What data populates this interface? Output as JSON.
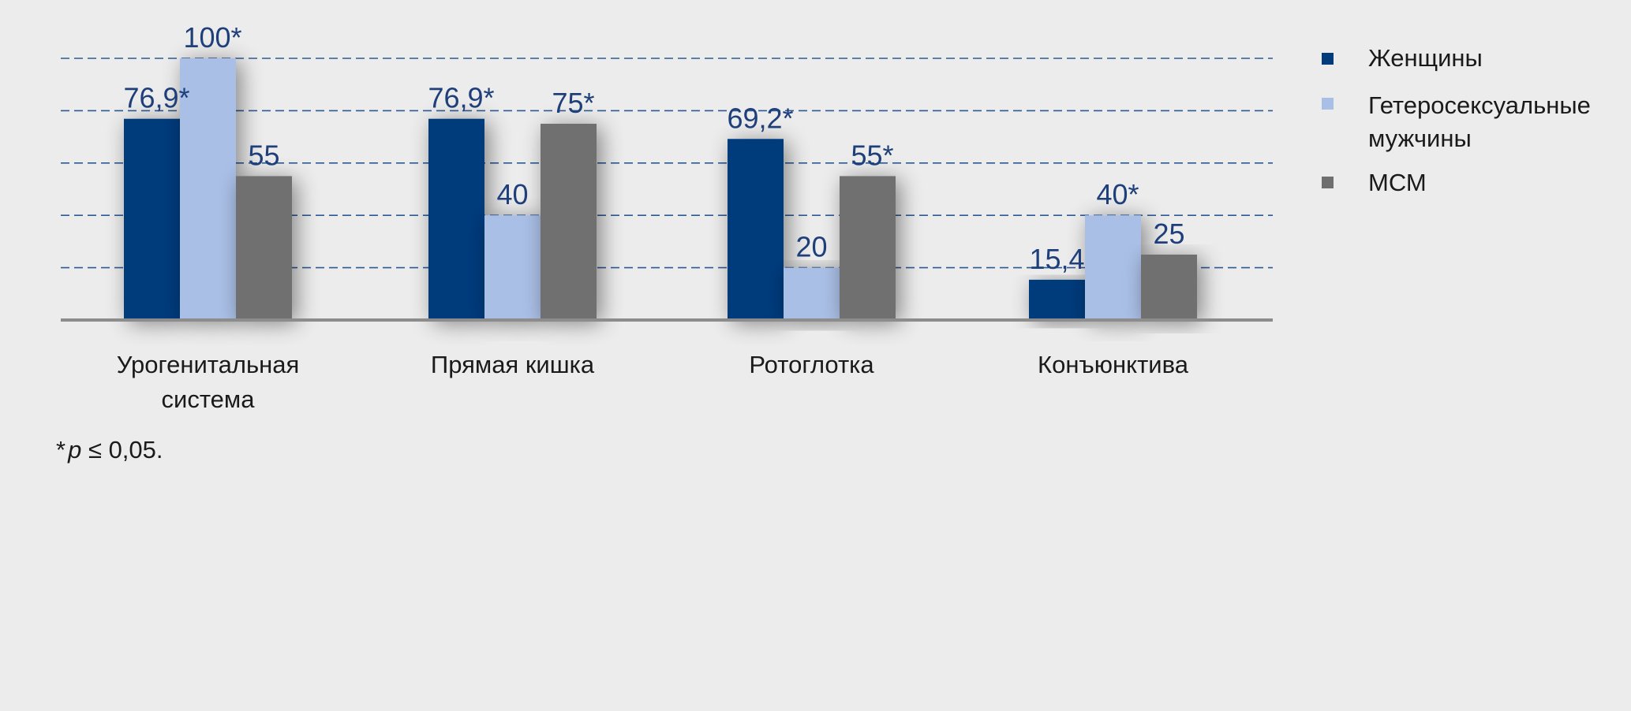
{
  "chart_data": {
    "type": "bar",
    "categories": [
      [
        "Урогенитальная",
        "система"
      ],
      [
        "Прямая кишка"
      ],
      [
        "Ротоглотка"
      ],
      [
        "Конъюнктива"
      ]
    ],
    "series": [
      {
        "name": "Женщины",
        "color": "#003b7b",
        "values": [
          76.9,
          76.9,
          69.2,
          15.4
        ],
        "labels": [
          "76,9*",
          "76,9*",
          "69,2*",
          "15,4"
        ]
      },
      {
        "name": "Гетеросексуальные мужчины",
        "legend_lines": [
          "Гетеросексуальные",
          "мужчины"
        ],
        "color": "#aabfe6",
        "values": [
          100,
          40,
          20,
          40
        ],
        "labels": [
          "100*",
          "40",
          "20",
          "40*"
        ]
      },
      {
        "name": "МСМ",
        "color": "#6f6f6f",
        "values": [
          55,
          75,
          55,
          25
        ],
        "labels": [
          "55",
          "75*",
          "55*",
          "25"
        ]
      }
    ],
    "ylim": [
      0,
      100
    ],
    "gridlines": [
      20,
      40,
      60,
      80,
      100
    ],
    "grid": true,
    "legend_position": "right",
    "footnote": {
      "star": "*",
      "p": "p",
      "rest": " ≤ 0,05."
    }
  }
}
